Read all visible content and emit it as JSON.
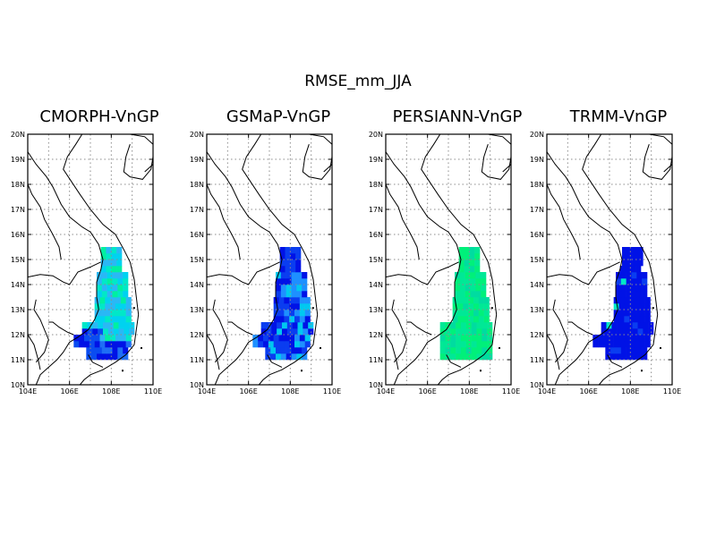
{
  "figure": {
    "title": "RMSE_mm_JJA"
  },
  "colors": {
    "coast": "#000000",
    "grid": "#8c8c8c",
    "scale_low": "#0012e6",
    "scale_mid": "#1e90ff",
    "scale_high": "#00e8c8",
    "scale_top": "#00f07a"
  },
  "chart_data": [
    {
      "type": "heatmap",
      "title": "CMORPH-VnGP",
      "xlim": [
        104,
        110
      ],
      "ylim": [
        10,
        20
      ],
      "x_ticks": [
        "104E",
        "106E",
        "108E",
        "110E"
      ],
      "y_ticks": [
        "10N",
        "11N",
        "12N",
        "13N",
        "14N",
        "15N",
        "16N",
        "17N",
        "18N",
        "19N",
        "20N"
      ],
      "grid": true,
      "cell_size_deg": 0.25,
      "profile": "cmorph"
    },
    {
      "type": "heatmap",
      "title": "GSMaP-VnGP",
      "xlim": [
        104,
        110
      ],
      "ylim": [
        10,
        20
      ],
      "x_ticks": [
        "104E",
        "106E",
        "108E",
        "110E"
      ],
      "y_ticks": [
        "10N",
        "11N",
        "12N",
        "13N",
        "14N",
        "15N",
        "16N",
        "17N",
        "18N",
        "19N",
        "20N"
      ],
      "grid": true,
      "cell_size_deg": 0.25,
      "profile": "gsmap"
    },
    {
      "type": "heatmap",
      "title": "PERSIANN-VnGP",
      "xlim": [
        104,
        110
      ],
      "ylim": [
        10,
        20
      ],
      "x_ticks": [
        "104E",
        "106E",
        "108E",
        "110E"
      ],
      "y_ticks": [
        "10N",
        "11N",
        "12N",
        "13N",
        "14N",
        "15N",
        "16N",
        "17N",
        "18N",
        "19N",
        "20N"
      ],
      "grid": true,
      "cell_size_deg": 0.25,
      "profile": "persiann"
    },
    {
      "type": "heatmap",
      "title": "TRMM-VnGP",
      "xlim": [
        104,
        110
      ],
      "ylim": [
        10,
        20
      ],
      "x_ticks": [
        "104E",
        "106E",
        "108E",
        "110E"
      ],
      "y_ticks": [
        "10N",
        "11N",
        "12N",
        "13N",
        "14N",
        "15N",
        "16N",
        "17N",
        "18N",
        "19N",
        "20N"
      ],
      "grid": true,
      "cell_size_deg": 0.25,
      "profile": "trmm"
    }
  ]
}
